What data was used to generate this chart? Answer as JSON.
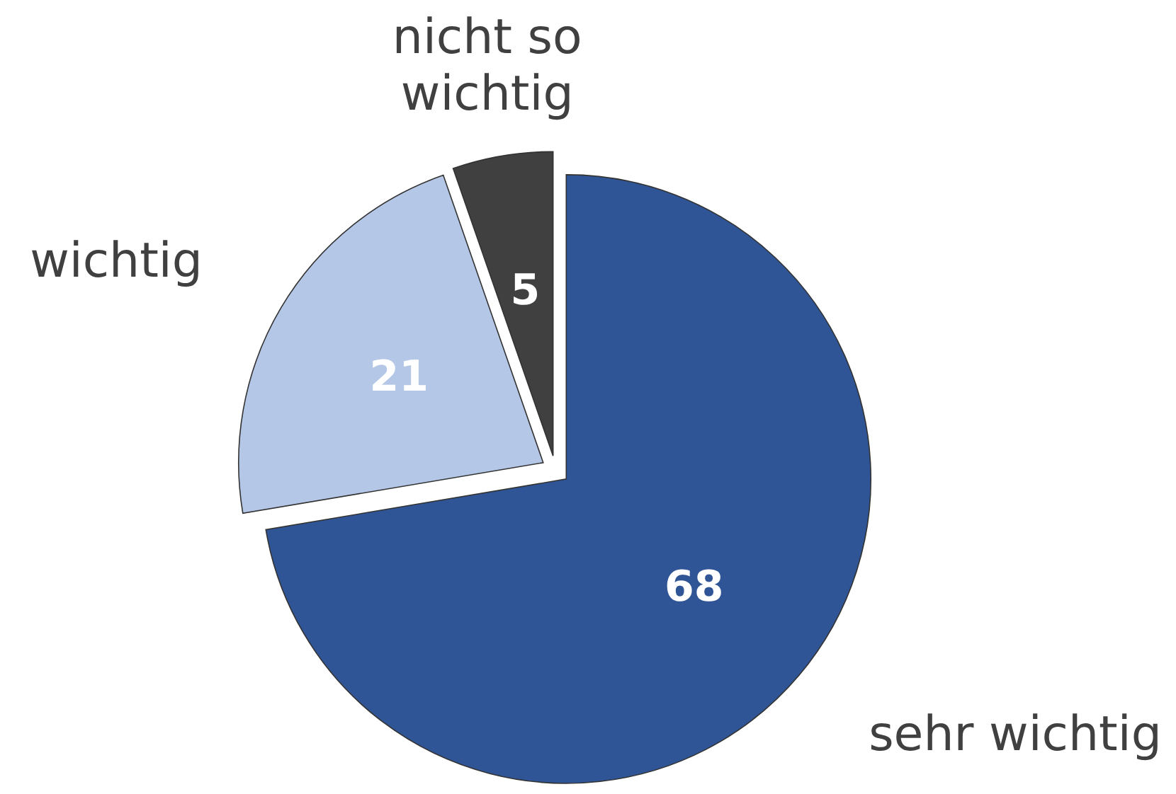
{
  "chart_data": {
    "type": "pie",
    "categories": [
      "sehr wichtig",
      "wichtig",
      "nicht so wichtig"
    ],
    "values": [
      68,
      21,
      5
    ],
    "colors": [
      "#2f5597",
      "#b4c7e7",
      "#404040"
    ],
    "data_labels": true
  }
}
